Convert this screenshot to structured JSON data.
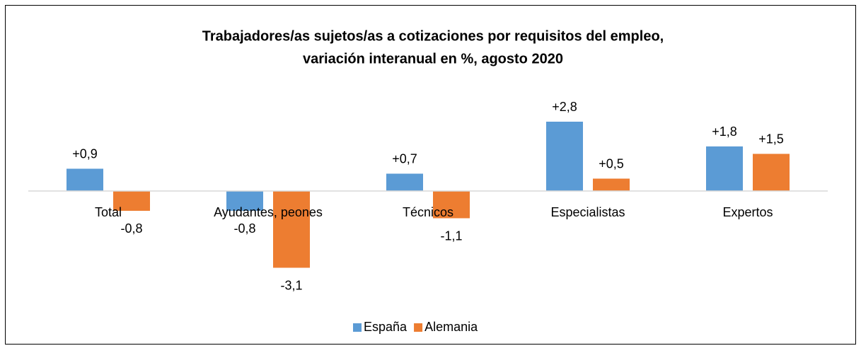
{
  "chart_data": {
    "type": "bar",
    "title": [
      "Trabajadores/as sujetos/as a cotizaciones por requisitos del empleo,",
      "variación interanual en %, agosto 2020"
    ],
    "categories": [
      "Total",
      "Ayudantes, peones",
      "Técnicos",
      "Especialistas",
      "Expertos"
    ],
    "series": [
      {
        "name": "España",
        "color": "#5b9bd5",
        "values": [
          0.9,
          -0.8,
          0.7,
          2.8,
          1.8
        ],
        "value_labels": [
          "+0,9",
          "-0,8",
          "+0,7",
          "+2,8",
          "+1,8"
        ]
      },
      {
        "name": "Alemania",
        "color": "#ed7d31",
        "values": [
          -0.8,
          -3.1,
          -1.1,
          0.5,
          1.5
        ],
        "value_labels": [
          "-0,8",
          "-3,1",
          "-1,1",
          "+0,5",
          "+1,5"
        ]
      }
    ],
    "legend": "bottom"
  }
}
